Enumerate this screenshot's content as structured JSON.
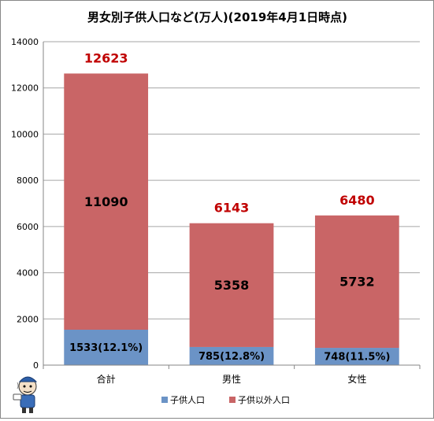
{
  "chart_data": {
    "type": "bar",
    "stacked": true,
    "title": "男女別子供人口など(万人)(2019年4月1日時点)",
    "categories": [
      "合計",
      "男性",
      "女性"
    ],
    "series": [
      {
        "name": "子供人口",
        "values": [
          1533,
          785,
          748
        ],
        "labels": [
          "1533(12.1%)",
          "785(12.8%)",
          "748(11.5%)"
        ],
        "color": "#6b93c6"
      },
      {
        "name": "子供以外人口",
        "values": [
          11090,
          5358,
          5732
        ],
        "labels": [
          "11090",
          "5358",
          "5732"
        ],
        "color": "#c96566"
      }
    ],
    "totals": [
      12623,
      6143,
      6480
    ],
    "total_label_color": "#c00000",
    "ylim": [
      0,
      14000
    ],
    "yticks": [
      0,
      2000,
      4000,
      6000,
      8000,
      10000,
      12000,
      14000
    ],
    "grid": true,
    "legend_position": "bottom"
  },
  "mascot": {
    "icon": "cartoon-mascot-icon"
  }
}
